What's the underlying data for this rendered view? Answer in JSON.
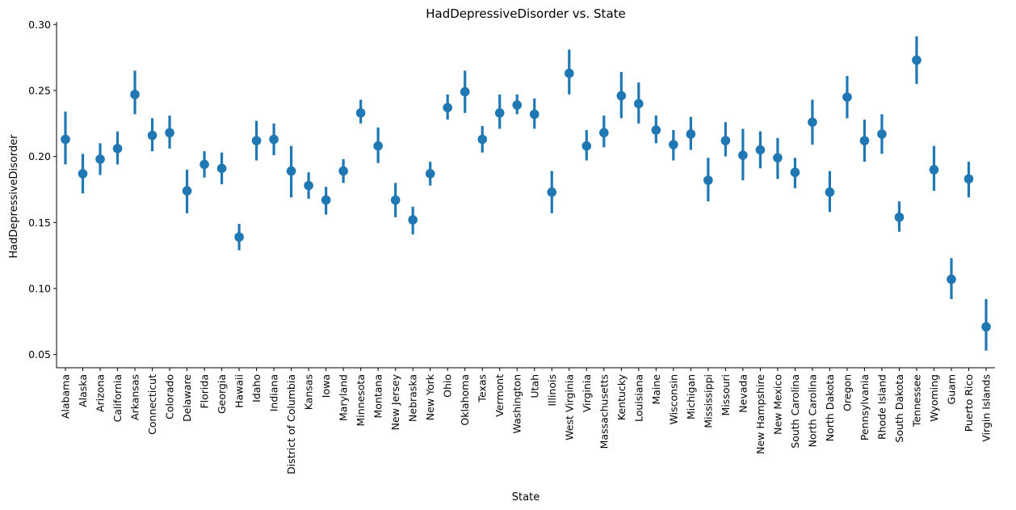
{
  "chart_data": {
    "type": "pointplot",
    "title": "HadDepressiveDisorder vs. State",
    "xlabel": "State",
    "ylabel": "HadDepressiveDisorder",
    "ylim": [
      0.04,
      0.302
    ],
    "yticks": [
      "0.05",
      "0.10",
      "0.15",
      "0.20",
      "0.25",
      "0.30"
    ],
    "ytick_values": [
      0.05,
      0.1,
      0.15,
      0.2,
      0.25,
      0.3
    ],
    "color": "#1f77b4",
    "grid": false,
    "points": [
      {
        "state": "Alabama",
        "mean": 0.213,
        "low": 0.194,
        "high": 0.234
      },
      {
        "state": "Alaska",
        "mean": 0.187,
        "low": 0.172,
        "high": 0.202
      },
      {
        "state": "Arizona",
        "mean": 0.198,
        "low": 0.186,
        "high": 0.21
      },
      {
        "state": "California",
        "mean": 0.206,
        "low": 0.194,
        "high": 0.219
      },
      {
        "state": "Arkansas",
        "mean": 0.247,
        "low": 0.232,
        "high": 0.265
      },
      {
        "state": "Connecticut",
        "mean": 0.216,
        "low": 0.204,
        "high": 0.229
      },
      {
        "state": "Colorado",
        "mean": 0.218,
        "low": 0.206,
        "high": 0.231
      },
      {
        "state": "Delaware",
        "mean": 0.174,
        "low": 0.157,
        "high": 0.19
      },
      {
        "state": "Florida",
        "mean": 0.194,
        "low": 0.184,
        "high": 0.204
      },
      {
        "state": "Georgia",
        "mean": 0.191,
        "low": 0.179,
        "high": 0.203
      },
      {
        "state": "Hawaii",
        "mean": 0.139,
        "low": 0.129,
        "high": 0.149
      },
      {
        "state": "Idaho",
        "mean": 0.212,
        "low": 0.197,
        "high": 0.227
      },
      {
        "state": "Indiana",
        "mean": 0.213,
        "low": 0.201,
        "high": 0.225
      },
      {
        "state": "District of Columbia",
        "mean": 0.189,
        "low": 0.169,
        "high": 0.208
      },
      {
        "state": "Kansas",
        "mean": 0.178,
        "low": 0.168,
        "high": 0.188
      },
      {
        "state": "Iowa",
        "mean": 0.167,
        "low": 0.156,
        "high": 0.177
      },
      {
        "state": "Maryland",
        "mean": 0.189,
        "low": 0.18,
        "high": 0.198
      },
      {
        "state": "Minnesota",
        "mean": 0.233,
        "low": 0.225,
        "high": 0.243
      },
      {
        "state": "Montana",
        "mean": 0.208,
        "low": 0.195,
        "high": 0.222
      },
      {
        "state": "New Jersey",
        "mean": 0.167,
        "low": 0.154,
        "high": 0.18
      },
      {
        "state": "Nebraska",
        "mean": 0.152,
        "low": 0.141,
        "high": 0.162
      },
      {
        "state": "New York",
        "mean": 0.187,
        "low": 0.178,
        "high": 0.196
      },
      {
        "state": "Ohio",
        "mean": 0.237,
        "low": 0.228,
        "high": 0.247
      },
      {
        "state": "Oklahoma",
        "mean": 0.249,
        "low": 0.233,
        "high": 0.265
      },
      {
        "state": "Texas",
        "mean": 0.213,
        "low": 0.203,
        "high": 0.223
      },
      {
        "state": "Vermont",
        "mean": 0.233,
        "low": 0.221,
        "high": 0.247
      },
      {
        "state": "Washington",
        "mean": 0.239,
        "low": 0.232,
        "high": 0.247
      },
      {
        "state": "Utah",
        "mean": 0.232,
        "low": 0.221,
        "high": 0.244
      },
      {
        "state": "Illinois",
        "mean": 0.173,
        "low": 0.157,
        "high": 0.189
      },
      {
        "state": "West Virginia",
        "mean": 0.263,
        "low": 0.247,
        "high": 0.281
      },
      {
        "state": "Virginia",
        "mean": 0.208,
        "low": 0.197,
        "high": 0.22
      },
      {
        "state": "Massachusetts",
        "mean": 0.218,
        "low": 0.207,
        "high": 0.231
      },
      {
        "state": "Kentucky",
        "mean": 0.246,
        "low": 0.229,
        "high": 0.264
      },
      {
        "state": "Louisiana",
        "mean": 0.24,
        "low": 0.225,
        "high": 0.256
      },
      {
        "state": "Maine",
        "mean": 0.22,
        "low": 0.21,
        "high": 0.231
      },
      {
        "state": "Wisconsin",
        "mean": 0.209,
        "low": 0.197,
        "high": 0.22
      },
      {
        "state": "Michigan",
        "mean": 0.217,
        "low": 0.205,
        "high": 0.23
      },
      {
        "state": "Mississippi",
        "mean": 0.182,
        "low": 0.166,
        "high": 0.199
      },
      {
        "state": "Missouri",
        "mean": 0.212,
        "low": 0.2,
        "high": 0.226
      },
      {
        "state": "Nevada",
        "mean": 0.201,
        "low": 0.182,
        "high": 0.221
      },
      {
        "state": "New Hampshire",
        "mean": 0.205,
        "low": 0.191,
        "high": 0.219
      },
      {
        "state": "New Mexico",
        "mean": 0.199,
        "low": 0.183,
        "high": 0.214
      },
      {
        "state": "South Carolina",
        "mean": 0.188,
        "low": 0.176,
        "high": 0.199
      },
      {
        "state": "North Carolina",
        "mean": 0.226,
        "low": 0.209,
        "high": 0.243
      },
      {
        "state": "North Dakota",
        "mean": 0.173,
        "low": 0.158,
        "high": 0.189
      },
      {
        "state": "Oregon",
        "mean": 0.245,
        "low": 0.229,
        "high": 0.261
      },
      {
        "state": "Pennsylvania",
        "mean": 0.212,
        "low": 0.196,
        "high": 0.228
      },
      {
        "state": "Rhode Island",
        "mean": 0.217,
        "low": 0.202,
        "high": 0.232
      },
      {
        "state": "South Dakota",
        "mean": 0.154,
        "low": 0.143,
        "high": 0.166
      },
      {
        "state": "Tennessee",
        "mean": 0.273,
        "low": 0.255,
        "high": 0.291
      },
      {
        "state": "Wyoming",
        "mean": 0.19,
        "low": 0.174,
        "high": 0.208
      },
      {
        "state": "Guam",
        "mean": 0.107,
        "low": 0.092,
        "high": 0.123
      },
      {
        "state": "Puerto Rico",
        "mean": 0.183,
        "low": 0.169,
        "high": 0.196
      },
      {
        "state": "Virgin Islands",
        "mean": 0.071,
        "low": 0.053,
        "high": 0.092
      }
    ]
  }
}
